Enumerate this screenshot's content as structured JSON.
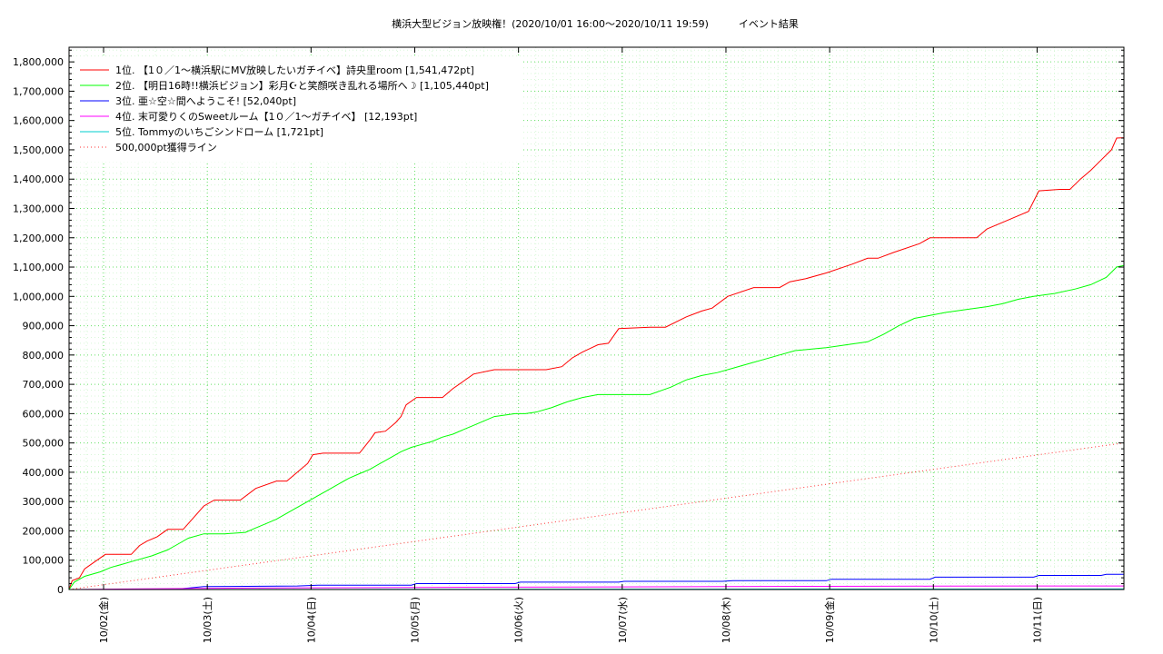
{
  "chart_data": {
    "type": "line",
    "title": "横浜大型ビジョン放映権！(2020/10/01 16:00〜2020/10/11 19:59)　　　イベント結果",
    "xlabel": "",
    "ylabel": "",
    "xlim": [
      0,
      10.17
    ],
    "ylim": [
      0,
      1850000
    ],
    "grid": true,
    "legend_position": "top-left",
    "y_ticks": [
      {
        "value": 0,
        "label": "0"
      },
      {
        "value": 100000,
        "label": "100,000"
      },
      {
        "value": 200000,
        "label": "200,000"
      },
      {
        "value": 300000,
        "label": "300,000"
      },
      {
        "value": 400000,
        "label": "400,000"
      },
      {
        "value": 500000,
        "label": "500,000"
      },
      {
        "value": 600000,
        "label": "600,000"
      },
      {
        "value": 700000,
        "label": "700,000"
      },
      {
        "value": 800000,
        "label": "800,000"
      },
      {
        "value": 900000,
        "label": "900,000"
      },
      {
        "value": 1000000,
        "label": "1,000,000"
      },
      {
        "value": 1100000,
        "label": "1,100,000"
      },
      {
        "value": 1200000,
        "label": "1,200,000"
      },
      {
        "value": 1300000,
        "label": "1,300,000"
      },
      {
        "value": 1400000,
        "label": "1,400,000"
      },
      {
        "value": 1500000,
        "label": "1,500,000"
      },
      {
        "value": 1600000,
        "label": "1,600,000"
      },
      {
        "value": 1700000,
        "label": "1,700,000"
      },
      {
        "value": 1800000,
        "label": "1,800,000"
      }
    ],
    "x_ticks": [
      {
        "value": 0.333,
        "label": "10/02(金)"
      },
      {
        "value": 1.333,
        "label": "10/03(土)"
      },
      {
        "value": 2.333,
        "label": "10/04(日)"
      },
      {
        "value": 3.333,
        "label": "10/05(月)"
      },
      {
        "value": 4.333,
        "label": "10/06(火)"
      },
      {
        "value": 5.333,
        "label": "10/07(水)"
      },
      {
        "value": 6.333,
        "label": "10/08(木)"
      },
      {
        "value": 7.333,
        "label": "10/09(金)"
      },
      {
        "value": 8.333,
        "label": "10/10(土)"
      },
      {
        "value": 9.333,
        "label": "10/11(日)"
      }
    ],
    "series": [
      {
        "name": "1位. 【1０／1〜横浜駅にMV放映したいガチイベ】詩央里room [1,541,472pt]",
        "color": "#ff0000",
        "style": "solid",
        "x": [
          0,
          0.03,
          0.1,
          0.15,
          0.25,
          0.35,
          0.6,
          0.68,
          0.75,
          0.85,
          0.95,
          1.1,
          1.2,
          1.3,
          1.4,
          1.55,
          1.65,
          1.8,
          2.0,
          2.1,
          2.2,
          2.3,
          2.35,
          2.45,
          2.6,
          2.8,
          2.9,
          2.95,
          3.05,
          3.15,
          3.2,
          3.25,
          3.35,
          3.6,
          3.7,
          3.8,
          3.9,
          4.1,
          4.3,
          4.6,
          4.75,
          4.85,
          4.95,
          5.1,
          5.2,
          5.3,
          5.6,
          5.75,
          5.95,
          6.1,
          6.2,
          6.35,
          6.6,
          6.85,
          6.95,
          7.1,
          7.3,
          7.55,
          7.7,
          7.8,
          7.95,
          8.2,
          8.3,
          8.5,
          8.75,
          8.85,
          9.05,
          9.25,
          9.35,
          9.55,
          9.65,
          9.75,
          9.85,
          9.95,
          10.05,
          10.1,
          10.17
        ],
        "y": [
          0,
          30000,
          40000,
          70000,
          95000,
          120000,
          120000,
          150000,
          165000,
          180000,
          205000,
          205000,
          245000,
          285000,
          305000,
          305000,
          305000,
          345000,
          370000,
          370000,
          400000,
          430000,
          460000,
          465000,
          465000,
          465000,
          510000,
          535000,
          540000,
          570000,
          590000,
          630000,
          655000,
          655000,
          685000,
          710000,
          735000,
          750000,
          750000,
          750000,
          760000,
          790000,
          810000,
          835000,
          840000,
          890000,
          895000,
          895000,
          930000,
          950000,
          960000,
          1000000,
          1030000,
          1030000,
          1050000,
          1060000,
          1080000,
          1110000,
          1130000,
          1130000,
          1150000,
          1180000,
          1200000,
          1200000,
          1200000,
          1230000,
          1260000,
          1290000,
          1360000,
          1365000,
          1365000,
          1400000,
          1430000,
          1465000,
          1500000,
          1540000,
          1541472
        ]
      },
      {
        "name": "2位. 【明日16時!!横浜ビジョン】彩月☪︎と笑顔咲き乱れる場所へ☽ [1,105,440pt]",
        "color": "#00ff00",
        "style": "solid",
        "x": [
          0,
          0.05,
          0.15,
          0.3,
          0.4,
          0.5,
          0.65,
          0.8,
          0.95,
          1.05,
          1.15,
          1.3,
          1.5,
          1.7,
          1.8,
          1.9,
          2.0,
          2.1,
          2.2,
          2.3,
          2.4,
          2.5,
          2.6,
          2.7,
          2.8,
          2.9,
          3.0,
          3.1,
          3.2,
          3.3,
          3.4,
          3.5,
          3.6,
          3.7,
          3.8,
          3.9,
          4.0,
          4.1,
          4.2,
          4.3,
          4.4,
          4.5,
          4.65,
          4.8,
          4.95,
          5.1,
          5.25,
          5.4,
          5.6,
          5.8,
          5.95,
          6.1,
          6.25,
          6.4,
          6.55,
          6.7,
          6.85,
          7.0,
          7.15,
          7.3,
          7.5,
          7.7,
          7.85,
          8.0,
          8.15,
          8.3,
          8.45,
          8.65,
          8.85,
          9.0,
          9.15,
          9.3,
          9.5,
          9.7,
          9.85,
          10.0,
          10.1,
          10.17
        ],
        "y": [
          0,
          25000,
          45000,
          60000,
          75000,
          85000,
          100000,
          115000,
          135000,
          155000,
          175000,
          190000,
          190000,
          195000,
          210000,
          225000,
          240000,
          260000,
          280000,
          300000,
          320000,
          340000,
          360000,
          380000,
          395000,
          410000,
          430000,
          450000,
          470000,
          485000,
          495000,
          505000,
          520000,
          530000,
          545000,
          560000,
          575000,
          590000,
          595000,
          600000,
          600000,
          605000,
          620000,
          640000,
          655000,
          665000,
          665000,
          665000,
          665000,
          690000,
          715000,
          730000,
          740000,
          755000,
          770000,
          785000,
          800000,
          815000,
          820000,
          825000,
          835000,
          845000,
          870000,
          900000,
          925000,
          935000,
          945000,
          955000,
          965000,
          975000,
          990000,
          1000000,
          1010000,
          1025000,
          1040000,
          1065000,
          1100000,
          1105440
        ]
      },
      {
        "name": "3位. 亜☆空☆間へようこそ! [52,040pt]",
        "color": "#0000ff",
        "style": "solid",
        "x": [
          0,
          1.0,
          1.3,
          2.2,
          2.4,
          3.3,
          3.35,
          4.3,
          4.35,
          5.3,
          5.35,
          6.3,
          6.4,
          7.3,
          7.35,
          8.3,
          8.35,
          9.3,
          9.35,
          9.95,
          10.0,
          10.17
        ],
        "y": [
          0,
          0,
          10000,
          12000,
          15000,
          15000,
          20000,
          20000,
          25000,
          25000,
          28000,
          28000,
          30000,
          30000,
          35000,
          35000,
          42000,
          42000,
          48000,
          48000,
          52000,
          52040
        ]
      },
      {
        "name": "4位. 末可愛りくのSweetルーム【1０／1〜ガチイベ】 [12,193pt]",
        "color": "#ff00ff",
        "style": "solid",
        "x": [
          0,
          1.3,
          2.3,
          3.3,
          4.3,
          5.3,
          6.3,
          7.3,
          8.3,
          9.3,
          10.17
        ],
        "y": [
          0,
          4000,
          6000,
          7000,
          8000,
          9000,
          10000,
          11000,
          11500,
          12000,
          12193
        ]
      },
      {
        "name": "5位. Tommyのいちごシンドローム [1,721pt]",
        "color": "#00cccc",
        "style": "solid",
        "x": [
          0,
          3.0,
          6.0,
          10.17
        ],
        "y": [
          0,
          600,
          1200,
          1721
        ]
      },
      {
        "name": "500,000pt獲得ライン",
        "color": "#ff3333",
        "style": "dotted",
        "x": [
          0,
          10.17
        ],
        "y": [
          0,
          500000
        ]
      }
    ]
  }
}
